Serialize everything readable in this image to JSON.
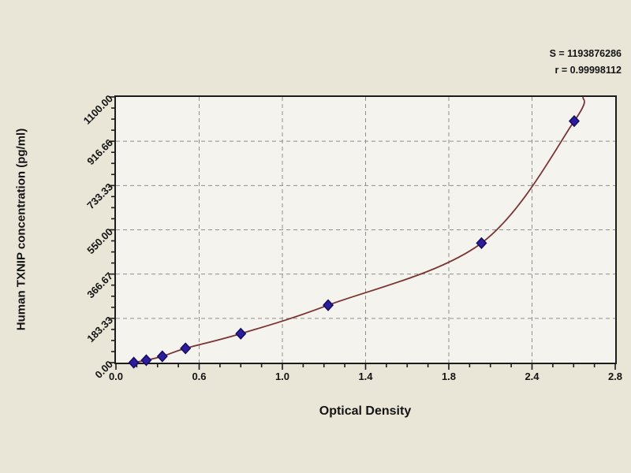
{
  "chart_data": {
    "type": "scatter",
    "title": "",
    "xlabel": "Optical Density",
    "ylabel": "Human TXNIP concentration (pg/ml)",
    "x_tick_labels": [
      "0.0",
      "0.6",
      "1.0",
      "1.4",
      "1.8",
      "2.4",
      "2.8"
    ],
    "y_tick_labels": [
      "0.00",
      "183.33",
      "366.67",
      "550.00",
      "733.33",
      "916.66",
      "1100.00"
    ],
    "xlim": [
      0,
      2.8
    ],
    "ylim": [
      0,
      1100
    ],
    "grid": "dashed-gray",
    "legend": "none",
    "annotation": {
      "s_label": "S = 1193876286",
      "r_label": "r = 0.99998112"
    },
    "series": [
      {
        "name": "standard-curve",
        "marker": "diamond",
        "points": [
          {
            "od": 0.1,
            "conc": 0
          },
          {
            "od": 0.17,
            "conc": 10
          },
          {
            "od": 0.26,
            "conc": 26
          },
          {
            "od": 0.39,
            "conc": 59
          },
          {
            "od": 0.7,
            "conc": 120
          },
          {
            "od": 1.19,
            "conc": 238
          },
          {
            "od": 2.05,
            "conc": 495
          },
          {
            "od": 2.57,
            "conc": 1000
          }
        ]
      }
    ],
    "fit_curve_extends_to": {
      "od": 2.62,
      "conc": 1100
    },
    "colors": {
      "background": "#e9e6d8",
      "plot_background": "#f4f3ed",
      "curve": "#7a3434",
      "marker_fill": "#2b1d9e",
      "marker_stroke": "#150c60",
      "grid": "#8f8f8f",
      "frame": "#1c1c1c",
      "text": "#141414"
    }
  }
}
